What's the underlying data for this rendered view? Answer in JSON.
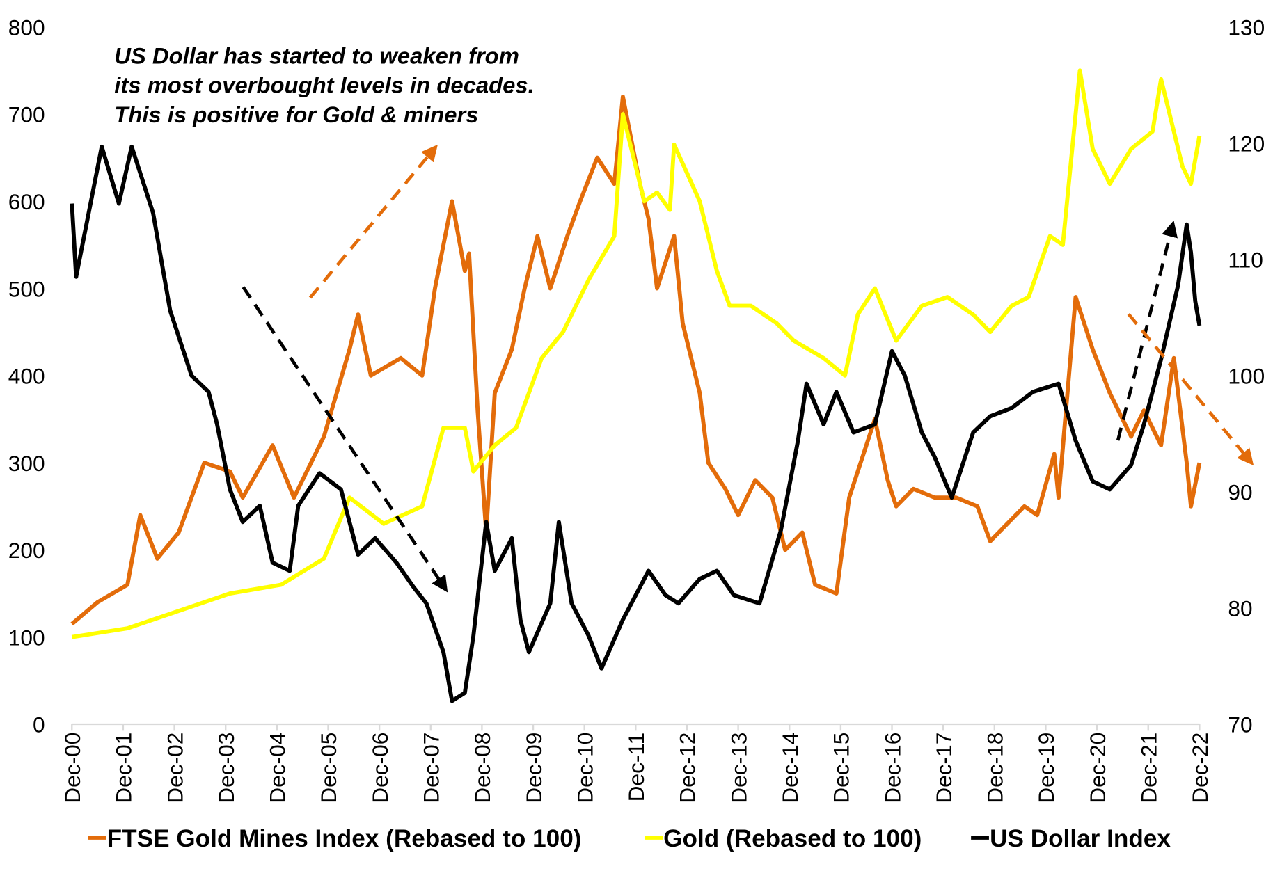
{
  "chart_data": {
    "type": "line",
    "title": "",
    "annotation": [
      "US Dollar has started to weaken from",
      "its most overbought levels in decades.",
      "This is positive for Gold & miners"
    ],
    "x_tick_labels": [
      "Dec-00",
      "Dec-01",
      "Dec-02",
      "Dec-03",
      "Dec-04",
      "Dec-05",
      "Dec-06",
      "Dec-07",
      "Dec-08",
      "Dec-09",
      "Dec-10",
      "Dec-11",
      "Dec-12",
      "Dec-13",
      "Dec-14",
      "Dec-15",
      "Dec-16",
      "Dec-17",
      "Dec-18",
      "Dec-19",
      "Dec-20",
      "Dec-21",
      "Dec-22"
    ],
    "xlim": [
      "2000-12",
      "2022-12"
    ],
    "y_left": {
      "ylim": [
        0,
        800
      ],
      "ticks": [
        "0",
        "100",
        "200",
        "300",
        "400",
        "500",
        "600",
        "700",
        "800"
      ]
    },
    "y_right": {
      "ylim": [
        70,
        130
      ],
      "ticks": [
        "70",
        "80",
        "90",
        "100",
        "110",
        "120",
        "130"
      ]
    },
    "grid": false,
    "legend_position": "bottom",
    "series": [
      {
        "name": "FTSE Gold Mines Index (Rebased to 100)",
        "axis": "left",
        "color": "#E36C0A",
        "points": [
          [
            "2000-12",
            115
          ],
          [
            "2001-06",
            140
          ],
          [
            "2002-01",
            160
          ],
          [
            "2002-04",
            240
          ],
          [
            "2002-08",
            190
          ],
          [
            "2003-01",
            220
          ],
          [
            "2003-07",
            300
          ],
          [
            "2004-01",
            290
          ],
          [
            "2004-04",
            260
          ],
          [
            "2004-11",
            320
          ],
          [
            "2005-04",
            260
          ],
          [
            "2005-11",
            330
          ],
          [
            "2006-05",
            430
          ],
          [
            "2006-07",
            470
          ],
          [
            "2006-10",
            400
          ],
          [
            "2007-05",
            420
          ],
          [
            "2007-10",
            400
          ],
          [
            "2008-01",
            500
          ],
          [
            "2008-03",
            550
          ],
          [
            "2008-05",
            600
          ],
          [
            "2008-08",
            520
          ],
          [
            "2008-09",
            540
          ],
          [
            "2008-11",
            360
          ],
          [
            "2009-01",
            220
          ],
          [
            "2009-03",
            380
          ],
          [
            "2009-07",
            430
          ],
          [
            "2009-10",
            500
          ],
          [
            "2010-01",
            560
          ],
          [
            "2010-04",
            500
          ],
          [
            "2010-08",
            560
          ],
          [
            "2010-11",
            600
          ],
          [
            "2011-03",
            650
          ],
          [
            "2011-07",
            620
          ],
          [
            "2011-09",
            720
          ],
          [
            "2012-01",
            620
          ],
          [
            "2012-03",
            580
          ],
          [
            "2012-05",
            500
          ],
          [
            "2012-09",
            560
          ],
          [
            "2012-11",
            460
          ],
          [
            "2013-03",
            380
          ],
          [
            "2013-05",
            300
          ],
          [
            "2013-09",
            270
          ],
          [
            "2013-12",
            240
          ],
          [
            "2014-04",
            280
          ],
          [
            "2014-08",
            260
          ],
          [
            "2014-11",
            200
          ],
          [
            "2015-03",
            220
          ],
          [
            "2015-06",
            160
          ],
          [
            "2015-11",
            150
          ],
          [
            "2016-02",
            260
          ],
          [
            "2016-08",
            350
          ],
          [
            "2016-11",
            280
          ],
          [
            "2017-01",
            250
          ],
          [
            "2017-05",
            270
          ],
          [
            "2017-10",
            260
          ],
          [
            "2018-03",
            260
          ],
          [
            "2018-08",
            250
          ],
          [
            "2018-11",
            210
          ],
          [
            "2019-03",
            230
          ],
          [
            "2019-07",
            250
          ],
          [
            "2019-10",
            240
          ],
          [
            "2020-02",
            310
          ],
          [
            "2020-03",
            260
          ],
          [
            "2020-07",
            490
          ],
          [
            "2020-11",
            430
          ],
          [
            "2021-03",
            380
          ],
          [
            "2021-08",
            330
          ],
          [
            "2021-11",
            360
          ],
          [
            "2022-03",
            320
          ],
          [
            "2022-06",
            420
          ],
          [
            "2022-09",
            300
          ],
          [
            "2022-10",
            250
          ],
          [
            "2022-12",
            300
          ]
        ]
      },
      {
        "name": "Gold (Rebased to 100)",
        "axis": "left",
        "color": "#FFFF00",
        "points": [
          [
            "2000-12",
            100
          ],
          [
            "2002-01",
            110
          ],
          [
            "2003-01",
            130
          ],
          [
            "2004-01",
            150
          ],
          [
            "2005-01",
            160
          ],
          [
            "2005-11",
            190
          ],
          [
            "2006-05",
            260
          ],
          [
            "2007-01",
            230
          ],
          [
            "2007-10",
            250
          ],
          [
            "2008-03",
            340
          ],
          [
            "2008-08",
            340
          ],
          [
            "2008-10",
            290
          ],
          [
            "2009-03",
            320
          ],
          [
            "2009-08",
            340
          ],
          [
            "2010-02",
            420
          ],
          [
            "2010-07",
            450
          ],
          [
            "2011-01",
            510
          ],
          [
            "2011-07",
            560
          ],
          [
            "2011-09",
            700
          ],
          [
            "2012-02",
            600
          ],
          [
            "2012-05",
            610
          ],
          [
            "2012-08",
            590
          ],
          [
            "2012-09",
            665
          ],
          [
            "2013-03",
            600
          ],
          [
            "2013-07",
            520
          ],
          [
            "2013-10",
            480
          ],
          [
            "2014-03",
            480
          ],
          [
            "2014-09",
            460
          ],
          [
            "2015-01",
            440
          ],
          [
            "2015-08",
            420
          ],
          [
            "2016-01",
            400
          ],
          [
            "2016-04",
            470
          ],
          [
            "2016-08",
            500
          ],
          [
            "2017-01",
            440
          ],
          [
            "2017-07",
            480
          ],
          [
            "2018-01",
            490
          ],
          [
            "2018-07",
            470
          ],
          [
            "2018-11",
            450
          ],
          [
            "2019-04",
            480
          ],
          [
            "2019-08",
            490
          ],
          [
            "2020-01",
            560
          ],
          [
            "2020-04",
            550
          ],
          [
            "2020-08",
            750
          ],
          [
            "2020-11",
            660
          ],
          [
            "2021-03",
            620
          ],
          [
            "2021-08",
            660
          ],
          [
            "2022-01",
            680
          ],
          [
            "2022-03",
            740
          ],
          [
            "2022-08",
            640
          ],
          [
            "2022-10",
            620
          ],
          [
            "2022-12",
            675
          ]
        ]
      },
      {
        "name": "US Dollar Index",
        "axis": "right",
        "color": "#000000",
        "points": [
          [
            "2000-12",
            114.8
          ],
          [
            "2001-01",
            108.5
          ],
          [
            "2001-07",
            119.7
          ],
          [
            "2001-11",
            114.8
          ],
          [
            "2002-02",
            119.7
          ],
          [
            "2002-07",
            114
          ],
          [
            "2002-11",
            105.6
          ],
          [
            "2003-04",
            100
          ],
          [
            "2003-08",
            98.6
          ],
          [
            "2003-10",
            95.8
          ],
          [
            "2004-01",
            90.2
          ],
          [
            "2004-04",
            87.4
          ],
          [
            "2004-08",
            88.8
          ],
          [
            "2004-11",
            83.9
          ],
          [
            "2005-03",
            83.2
          ],
          [
            "2005-05",
            88.8
          ],
          [
            "2005-10",
            91.6
          ],
          [
            "2006-03",
            90.2
          ],
          [
            "2006-07",
            84.6
          ],
          [
            "2006-11",
            86
          ],
          [
            "2007-04",
            83.9
          ],
          [
            "2007-08",
            81.8
          ],
          [
            "2007-11",
            80.4
          ],
          [
            "2008-03",
            76.2
          ],
          [
            "2008-05",
            72
          ],
          [
            "2008-08",
            72.7
          ],
          [
            "2008-10",
            77.6
          ],
          [
            "2009-01",
            87.4
          ],
          [
            "2009-03",
            83.2
          ],
          [
            "2009-07",
            86
          ],
          [
            "2009-09",
            79
          ],
          [
            "2009-11",
            76.2
          ],
          [
            "2010-04",
            80.4
          ],
          [
            "2010-06",
            87.4
          ],
          [
            "2010-09",
            80.4
          ],
          [
            "2011-01",
            77.6
          ],
          [
            "2011-04",
            74.8
          ],
          [
            "2011-09",
            79
          ],
          [
            "2011-11",
            80.4
          ],
          [
            "2012-03",
            83.2
          ],
          [
            "2012-07",
            81.1
          ],
          [
            "2012-10",
            80.4
          ],
          [
            "2013-03",
            82.5
          ],
          [
            "2013-07",
            83.2
          ],
          [
            "2013-11",
            81.1
          ],
          [
            "2014-05",
            80.4
          ],
          [
            "2014-10",
            86.7
          ],
          [
            "2015-02",
            94.4
          ],
          [
            "2015-04",
            99.3
          ],
          [
            "2015-08",
            95.8
          ],
          [
            "2015-11",
            98.6
          ],
          [
            "2016-03",
            95.1
          ],
          [
            "2016-08",
            95.8
          ],
          [
            "2016-12",
            102.1
          ],
          [
            "2017-03",
            100
          ],
          [
            "2017-07",
            95.1
          ],
          [
            "2017-10",
            93
          ],
          [
            "2018-02",
            89.5
          ],
          [
            "2018-07",
            95.1
          ],
          [
            "2018-11",
            96.5
          ],
          [
            "2019-04",
            97.2
          ],
          [
            "2019-09",
            98.6
          ],
          [
            "2020-03",
            99.3
          ],
          [
            "2020-07",
            94.4
          ],
          [
            "2020-11",
            90.9
          ],
          [
            "2021-03",
            90.2
          ],
          [
            "2021-08",
            92.3
          ],
          [
            "2021-11",
            95.8
          ],
          [
            "2022-03",
            101.4
          ],
          [
            "2022-07",
            107.8
          ],
          [
            "2022-09",
            113
          ],
          [
            "2022-10",
            110.6
          ],
          [
            "2022-11",
            106.4
          ],
          [
            "2022-12",
            104.3
          ]
        ]
      }
    ]
  }
}
